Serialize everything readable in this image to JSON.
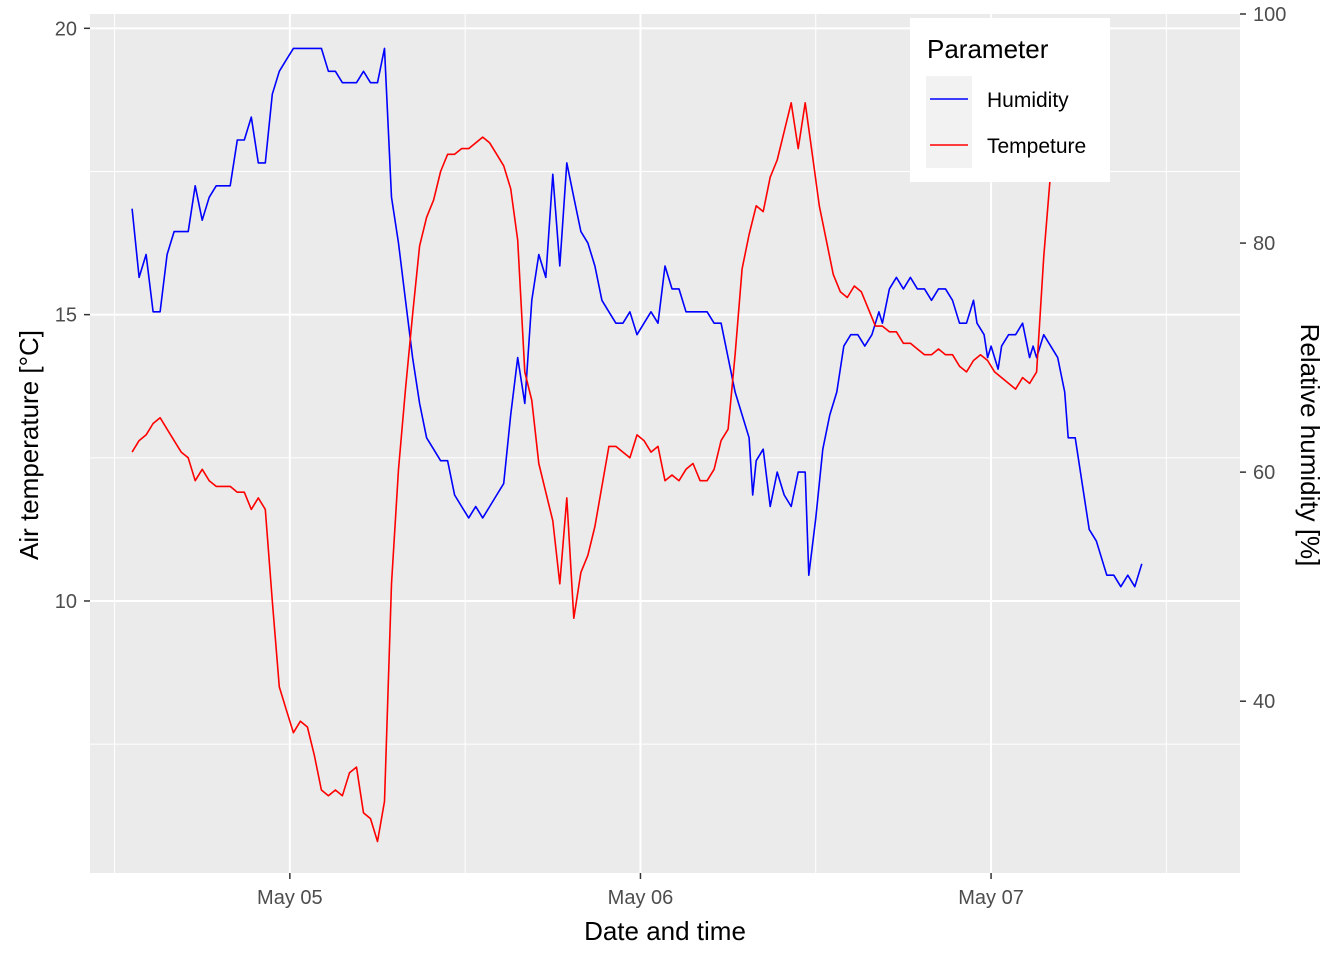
{
  "chart_data": {
    "type": "line",
    "title": "",
    "xlabel": "Date and time",
    "ylabel_left": "Air temperature [°C]",
    "ylabel_right": "Relative humidity [%]",
    "x_unit": "day",
    "x_ticks": [
      "May 05",
      "May 06",
      "May 07"
    ],
    "x_tick_values": [
      5,
      6,
      7
    ],
    "xlim": [
      4.43,
      7.71
    ],
    "y_left_ticks": [
      10,
      15,
      20
    ],
    "y_left_lim": [
      5.25,
      20.25
    ],
    "y_right_ticks": [
      40,
      60,
      80,
      100
    ],
    "y_right_lim": [
      25,
      100
    ],
    "grid": true,
    "legend": {
      "title": "Parameter",
      "position": "top-right",
      "entries": [
        {
          "label": "Humidity",
          "color": "#0000ff",
          "axis": "right"
        },
        {
          "label": "Tempeture",
          "color": "#ff0000",
          "axis": "left"
        }
      ]
    },
    "series": [
      {
        "name": "Humidity",
        "axis": "right",
        "color": "#0000ff",
        "points": [
          [
            4.55,
            83
          ],
          [
            4.57,
            77
          ],
          [
            4.59,
            79
          ],
          [
            4.61,
            74
          ],
          [
            4.63,
            74
          ],
          [
            4.65,
            79
          ],
          [
            4.67,
            81
          ],
          [
            4.69,
            81
          ],
          [
            4.71,
            81
          ],
          [
            4.73,
            85
          ],
          [
            4.75,
            82
          ],
          [
            4.77,
            84
          ],
          [
            4.79,
            85
          ],
          [
            4.81,
            85
          ],
          [
            4.83,
            85
          ],
          [
            4.85,
            89
          ],
          [
            4.87,
            89
          ],
          [
            4.89,
            91
          ],
          [
            4.91,
            87
          ],
          [
            4.93,
            87
          ],
          [
            4.95,
            93
          ],
          [
            4.97,
            95
          ],
          [
            4.99,
            96
          ],
          [
            5.01,
            97
          ],
          [
            5.03,
            97
          ],
          [
            5.05,
            97
          ],
          [
            5.07,
            97
          ],
          [
            5.09,
            97
          ],
          [
            5.11,
            95
          ],
          [
            5.13,
            95
          ],
          [
            5.15,
            94
          ],
          [
            5.17,
            94
          ],
          [
            5.19,
            94
          ],
          [
            5.21,
            95
          ],
          [
            5.23,
            94
          ],
          [
            5.25,
            94
          ],
          [
            5.27,
            97
          ],
          [
            5.29,
            84
          ],
          [
            5.31,
            80
          ],
          [
            5.33,
            75
          ],
          [
            5.35,
            70
          ],
          [
            5.37,
            66
          ],
          [
            5.39,
            63
          ],
          [
            5.41,
            62
          ],
          [
            5.43,
            61
          ],
          [
            5.45,
            61
          ],
          [
            5.47,
            58
          ],
          [
            5.49,
            57
          ],
          [
            5.51,
            56
          ],
          [
            5.53,
            57
          ],
          [
            5.55,
            56
          ],
          [
            5.57,
            57
          ],
          [
            5.59,
            58
          ],
          [
            5.61,
            59
          ],
          [
            5.63,
            65
          ],
          [
            5.65,
            70
          ],
          [
            5.67,
            66
          ],
          [
            5.69,
            75
          ],
          [
            5.71,
            79
          ],
          [
            5.73,
            77
          ],
          [
            5.75,
            86
          ],
          [
            5.77,
            78
          ],
          [
            5.79,
            87
          ],
          [
            5.81,
            84
          ],
          [
            5.83,
            81
          ],
          [
            5.85,
            80
          ],
          [
            5.87,
            78
          ],
          [
            5.89,
            75
          ],
          [
            5.91,
            74
          ],
          [
            5.93,
            73
          ],
          [
            5.95,
            73
          ],
          [
            5.97,
            74
          ],
          [
            5.99,
            72
          ],
          [
            6.01,
            73
          ],
          [
            6.03,
            74
          ],
          [
            6.05,
            73
          ],
          [
            6.07,
            78
          ],
          [
            6.09,
            76
          ],
          [
            6.11,
            76
          ],
          [
            6.13,
            74
          ],
          [
            6.15,
            74
          ],
          [
            6.17,
            74
          ],
          [
            6.19,
            74
          ],
          [
            6.21,
            73
          ],
          [
            6.23,
            73
          ],
          [
            6.25,
            70
          ],
          [
            6.27,
            67
          ],
          [
            6.29,
            65
          ],
          [
            6.31,
            63
          ],
          [
            6.32,
            58
          ],
          [
            6.33,
            61
          ],
          [
            6.35,
            62
          ],
          [
            6.37,
            57
          ],
          [
            6.39,
            60
          ],
          [
            6.41,
            58
          ],
          [
            6.43,
            57
          ],
          [
            6.45,
            60
          ],
          [
            6.47,
            60
          ],
          [
            6.48,
            51
          ],
          [
            6.5,
            56
          ],
          [
            6.52,
            62
          ],
          [
            6.54,
            65
          ],
          [
            6.56,
            67
          ],
          [
            6.58,
            71
          ],
          [
            6.6,
            72
          ],
          [
            6.62,
            72
          ],
          [
            6.64,
            71
          ],
          [
            6.66,
            72
          ],
          [
            6.68,
            74
          ],
          [
            6.69,
            73
          ],
          [
            6.71,
            76
          ],
          [
            6.73,
            77
          ],
          [
            6.75,
            76
          ],
          [
            6.77,
            77
          ],
          [
            6.79,
            76
          ],
          [
            6.81,
            76
          ],
          [
            6.83,
            75
          ],
          [
            6.85,
            76
          ],
          [
            6.87,
            76
          ],
          [
            6.89,
            75
          ],
          [
            6.91,
            73
          ],
          [
            6.93,
            73
          ],
          [
            6.95,
            75
          ],
          [
            6.96,
            73
          ],
          [
            6.98,
            72
          ],
          [
            6.99,
            70
          ],
          [
            7.0,
            71
          ],
          [
            7.02,
            69
          ],
          [
            7.03,
            71
          ],
          [
            7.05,
            72
          ],
          [
            7.07,
            72
          ],
          [
            7.09,
            73
          ],
          [
            7.11,
            70
          ],
          [
            7.12,
            71
          ],
          [
            7.13,
            70
          ],
          [
            7.15,
            72
          ],
          [
            7.17,
            71
          ],
          [
            7.19,
            70
          ],
          [
            7.21,
            67
          ],
          [
            7.22,
            63
          ],
          [
            7.24,
            63
          ],
          [
            7.26,
            59
          ],
          [
            7.28,
            55
          ],
          [
            7.3,
            54
          ],
          [
            7.31,
            53
          ],
          [
            7.33,
            51
          ],
          [
            7.35,
            51
          ],
          [
            7.37,
            50
          ],
          [
            7.39,
            51
          ],
          [
            7.41,
            50
          ],
          [
            7.43,
            52
          ]
        ]
      },
      {
        "name": "Tempeture",
        "axis": "left",
        "color": "#ff0000",
        "points": [
          [
            4.55,
            12.6
          ],
          [
            4.57,
            12.8
          ],
          [
            4.59,
            12.9
          ],
          [
            4.61,
            13.1
          ],
          [
            4.63,
            13.2
          ],
          [
            4.65,
            13.0
          ],
          [
            4.67,
            12.8
          ],
          [
            4.69,
            12.6
          ],
          [
            4.71,
            12.5
          ],
          [
            4.73,
            12.1
          ],
          [
            4.75,
            12.3
          ],
          [
            4.77,
            12.1
          ],
          [
            4.79,
            12.0
          ],
          [
            4.81,
            12.0
          ],
          [
            4.83,
            12.0
          ],
          [
            4.85,
            11.9
          ],
          [
            4.87,
            11.9
          ],
          [
            4.89,
            11.6
          ],
          [
            4.91,
            11.8
          ],
          [
            4.93,
            11.6
          ],
          [
            4.95,
            10.0
          ],
          [
            4.97,
            8.5
          ],
          [
            4.99,
            8.1
          ],
          [
            5.01,
            7.7
          ],
          [
            5.03,
            7.9
          ],
          [
            5.05,
            7.8
          ],
          [
            5.07,
            7.3
          ],
          [
            5.09,
            6.7
          ],
          [
            5.11,
            6.6
          ],
          [
            5.13,
            6.7
          ],
          [
            5.15,
            6.6
          ],
          [
            5.17,
            7.0
          ],
          [
            5.19,
            7.1
          ],
          [
            5.21,
            6.3
          ],
          [
            5.23,
            6.2
          ],
          [
            5.25,
            5.8
          ],
          [
            5.27,
            6.5
          ],
          [
            5.29,
            10.3
          ],
          [
            5.31,
            12.3
          ],
          [
            5.33,
            13.7
          ],
          [
            5.35,
            15.0
          ],
          [
            5.37,
            16.2
          ],
          [
            5.39,
            16.7
          ],
          [
            5.41,
            17.0
          ],
          [
            5.43,
            17.5
          ],
          [
            5.45,
            17.8
          ],
          [
            5.47,
            17.8
          ],
          [
            5.49,
            17.9
          ],
          [
            5.51,
            17.9
          ],
          [
            5.53,
            18.0
          ],
          [
            5.55,
            18.1
          ],
          [
            5.57,
            18.0
          ],
          [
            5.59,
            17.8
          ],
          [
            5.61,
            17.6
          ],
          [
            5.63,
            17.2
          ],
          [
            5.65,
            16.3
          ],
          [
            5.67,
            14.0
          ],
          [
            5.69,
            13.5
          ],
          [
            5.71,
            12.4
          ],
          [
            5.73,
            11.9
          ],
          [
            5.75,
            11.4
          ],
          [
            5.77,
            10.3
          ],
          [
            5.79,
            11.8
          ],
          [
            5.81,
            9.7
          ],
          [
            5.83,
            10.5
          ],
          [
            5.85,
            10.8
          ],
          [
            5.87,
            11.3
          ],
          [
            5.89,
            12.0
          ],
          [
            5.91,
            12.7
          ],
          [
            5.93,
            12.7
          ],
          [
            5.95,
            12.6
          ],
          [
            5.97,
            12.5
          ],
          [
            5.99,
            12.9
          ],
          [
            6.01,
            12.8
          ],
          [
            6.03,
            12.6
          ],
          [
            6.05,
            12.7
          ],
          [
            6.07,
            12.1
          ],
          [
            6.09,
            12.2
          ],
          [
            6.11,
            12.1
          ],
          [
            6.13,
            12.3
          ],
          [
            6.15,
            12.4
          ],
          [
            6.17,
            12.1
          ],
          [
            6.19,
            12.1
          ],
          [
            6.21,
            12.3
          ],
          [
            6.23,
            12.8
          ],
          [
            6.25,
            13.0
          ],
          [
            6.27,
            14.3
          ],
          [
            6.29,
            15.8
          ],
          [
            6.31,
            16.4
          ],
          [
            6.33,
            16.9
          ],
          [
            6.35,
            16.8
          ],
          [
            6.37,
            17.4
          ],
          [
            6.39,
            17.7
          ],
          [
            6.41,
            18.2
          ],
          [
            6.43,
            18.7
          ],
          [
            6.45,
            17.9
          ],
          [
            6.47,
            18.7
          ],
          [
            6.49,
            17.8
          ],
          [
            6.51,
            16.9
          ],
          [
            6.53,
            16.3
          ],
          [
            6.55,
            15.7
          ],
          [
            6.57,
            15.4
          ],
          [
            6.59,
            15.3
          ],
          [
            6.61,
            15.5
          ],
          [
            6.63,
            15.4
          ],
          [
            6.65,
            15.1
          ],
          [
            6.67,
            14.8
          ],
          [
            6.69,
            14.8
          ],
          [
            6.71,
            14.7
          ],
          [
            6.73,
            14.7
          ],
          [
            6.75,
            14.5
          ],
          [
            6.77,
            14.5
          ],
          [
            6.79,
            14.4
          ],
          [
            6.81,
            14.3
          ],
          [
            6.83,
            14.3
          ],
          [
            6.85,
            14.4
          ],
          [
            6.87,
            14.3
          ],
          [
            6.89,
            14.3
          ],
          [
            6.91,
            14.1
          ],
          [
            6.93,
            14.0
          ],
          [
            6.95,
            14.2
          ],
          [
            6.97,
            14.3
          ],
          [
            6.99,
            14.2
          ],
          [
            7.01,
            14.0
          ],
          [
            7.03,
            13.9
          ],
          [
            7.05,
            13.8
          ],
          [
            7.07,
            13.7
          ],
          [
            7.09,
            13.9
          ],
          [
            7.11,
            13.8
          ],
          [
            7.13,
            14.0
          ],
          [
            7.15,
            16.0
          ],
          [
            7.17,
            17.5
          ],
          [
            7.19,
            18.5
          ],
          [
            7.21,
            19.1
          ],
          [
            7.23,
            19.5
          ],
          [
            7.25,
            19.5
          ],
          [
            7.27,
            19.6
          ],
          [
            7.29,
            19.4
          ],
          [
            7.31,
            18.6
          ]
        ]
      }
    ]
  }
}
